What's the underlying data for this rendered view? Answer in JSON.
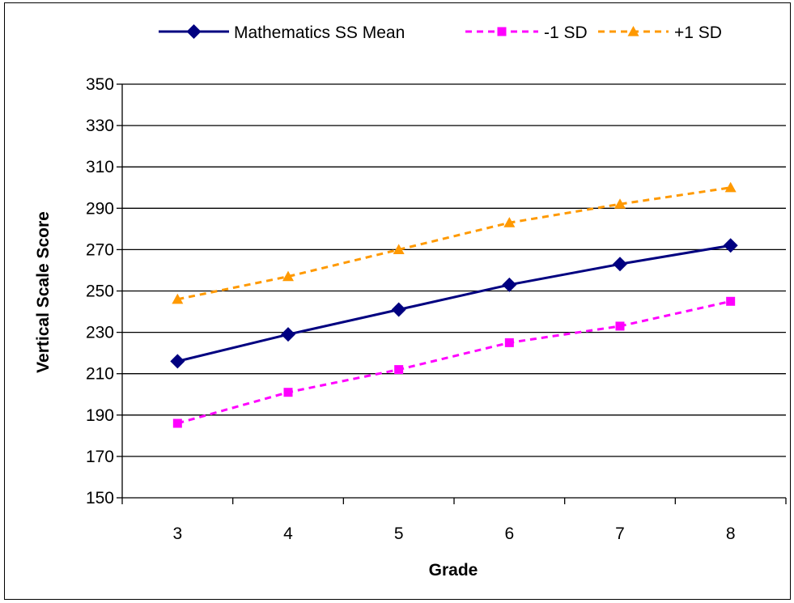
{
  "chart_data": {
    "type": "line",
    "title": "",
    "xlabel": "Grade",
    "ylabel": "Vertical Scale Score",
    "categories": [
      "3",
      "4",
      "5",
      "6",
      "7",
      "8"
    ],
    "ylim": [
      150,
      350
    ],
    "yticks": [
      "150",
      "170",
      "190",
      "210",
      "230",
      "250",
      "270",
      "290",
      "310",
      "330",
      "350"
    ],
    "grid": "horizontal",
    "legend_position": "top",
    "series": [
      {
        "name": "Mathematics SS Mean",
        "values": [
          216,
          229,
          241,
          253,
          263,
          272
        ],
        "color": "#000080",
        "line": "solid",
        "marker": "diamond"
      },
      {
        "name": "-1 SD",
        "values": [
          186,
          201,
          212,
          225,
          233,
          245
        ],
        "color": "#ff00ff",
        "line": "dashed",
        "marker": "square"
      },
      {
        "name": "+1 SD",
        "values": [
          246,
          257,
          270,
          283,
          292,
          300
        ],
        "color": "#ff9900",
        "line": "dashed",
        "marker": "triangle"
      }
    ]
  }
}
